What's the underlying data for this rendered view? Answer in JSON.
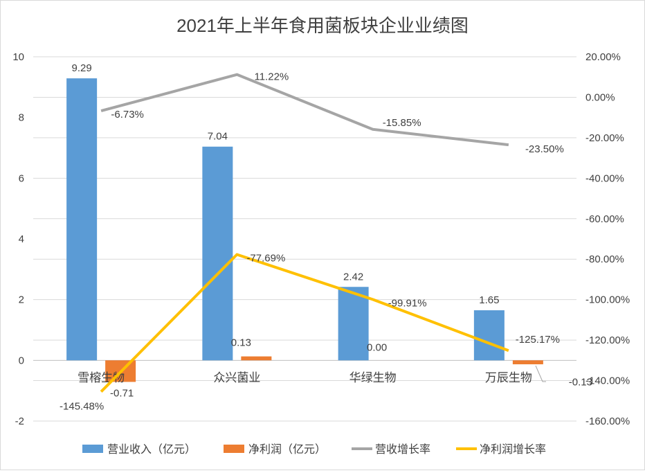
{
  "chart_data": {
    "type": "bar+line",
    "title": "2021年上半年食用菌板块企业业绩图",
    "categories": [
      "雪榕生物",
      "众兴菌业",
      "华绿生物",
      "万辰生物"
    ],
    "y_left": {
      "range": [
        -2,
        10
      ],
      "ticks": [
        "-2",
        "0",
        "2",
        "4",
        "6",
        "8",
        "10"
      ]
    },
    "y_right": {
      "range": [
        -160,
        20
      ],
      "ticks": [
        "-160.00%",
        "-140.00%",
        "-120.00%",
        "-100.00%",
        "-80.00%",
        "-60.00%",
        "-40.00%",
        "-20.00%",
        "0.00%",
        "20.00%"
      ]
    },
    "grid": true,
    "legend_position": "bottom",
    "series": [
      {
        "name": "营业收入（亿元）",
        "type": "bar",
        "axis": "left",
        "color": "#5b9bd5",
        "values": [
          9.29,
          7.04,
          2.42,
          1.65
        ],
        "labels": [
          "9.29",
          "7.04",
          "2.42",
          "1.65"
        ]
      },
      {
        "name": "净利润（亿元）",
        "type": "bar",
        "axis": "left",
        "color": "#ed7d31",
        "values": [
          -0.71,
          0.13,
          0.0,
          -0.13
        ],
        "labels": [
          "-0.71",
          "0.13",
          "0.00",
          "-0.13"
        ]
      },
      {
        "name": "营收增长率",
        "type": "line",
        "axis": "right",
        "color": "#a5a5a5",
        "values": [
          -6.73,
          11.22,
          -15.85,
          -23.5
        ],
        "labels": [
          "-6.73%",
          "11.22%",
          "-15.85%",
          "-23.50%"
        ]
      },
      {
        "name": "净利润增长率",
        "type": "line",
        "axis": "right",
        "color": "#ffc000",
        "values": [
          -145.48,
          -77.69,
          -99.91,
          -125.17
        ],
        "labels": [
          "-145.48%",
          "-77.69%",
          "-99.91%",
          "-125.17%"
        ]
      }
    ]
  }
}
